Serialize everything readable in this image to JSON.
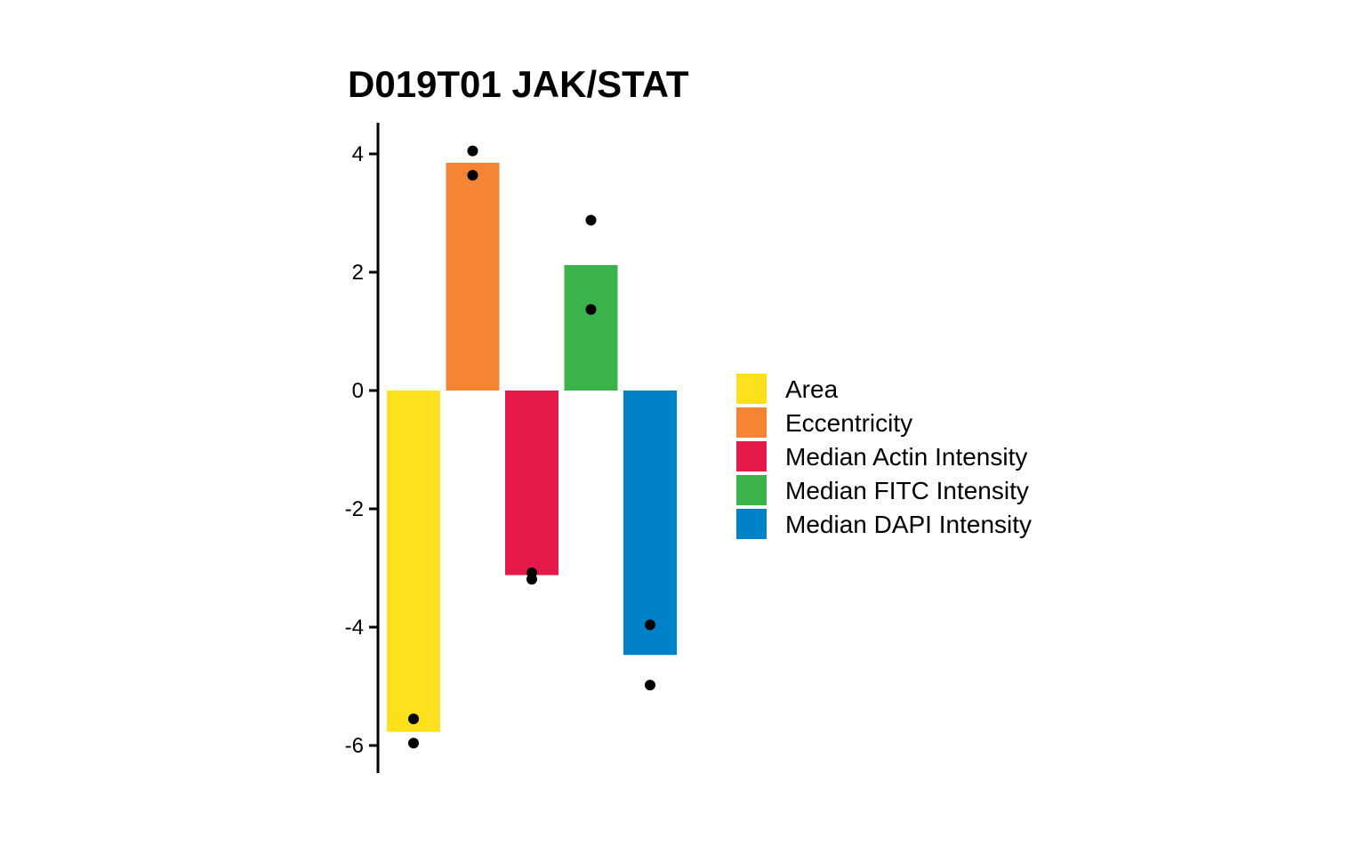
{
  "chart_data": {
    "type": "bar",
    "title": "D019T01 JAK/STAT",
    "xlabel": "",
    "ylabel": "",
    "ylim": [
      -6.5,
      4.5
    ],
    "yticks": [
      4,
      2,
      0,
      -2,
      -4,
      -6
    ],
    "grid": false,
    "legend_position": "right",
    "categories": [
      "Area",
      "Eccentricity",
      "Median Actin Intensity",
      "Median FITC Intensity",
      "Median DAPI Intensity"
    ],
    "values": [
      -5.77,
      3.85,
      -3.12,
      2.12,
      -4.47
    ],
    "colors": [
      "#FDE11C",
      "#F58533",
      "#E51A4B",
      "#3AB34A",
      "#0082C8"
    ],
    "points": [
      [
        -5.55,
        -5.96
      ],
      [
        4.05,
        3.64
      ],
      [
        -3.08,
        -3.19
      ],
      [
        2.88,
        1.37
      ],
      [
        -3.96,
        -4.98
      ]
    ]
  }
}
